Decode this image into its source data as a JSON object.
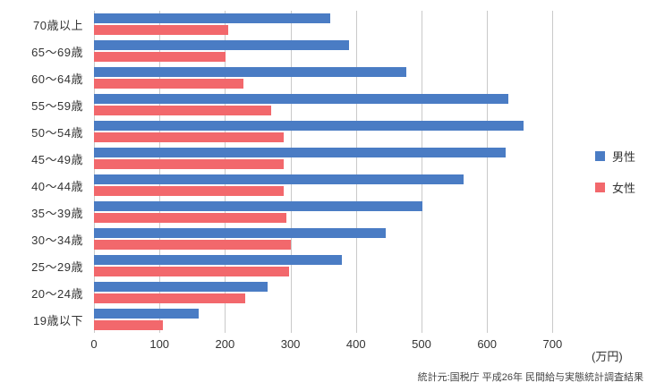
{
  "chart_data": {
    "type": "bar",
    "orientation": "horizontal",
    "title": "",
    "categories": [
      "70歳以上",
      "65〜69歳",
      "60〜64歳",
      "55〜59歳",
      "50〜54歳",
      "45〜49歳",
      "40〜44歳",
      "35〜39歳",
      "30〜34歳",
      "25〜29歳",
      "20〜24歳",
      "19歳以下"
    ],
    "series": [
      {
        "name": "男性",
        "color": "#4a7cc4",
        "values": [
          360,
          390,
          477,
          632,
          656,
          629,
          564,
          502,
          446,
          378,
          265,
          160
        ]
      },
      {
        "name": "女性",
        "color": "#f2686c",
        "values": [
          205,
          201,
          228,
          270,
          290,
          290,
          290,
          294,
          301,
          298,
          231,
          105
        ]
      }
    ],
    "x_ticks": [
      0,
      100,
      200,
      300,
      400,
      500,
      600,
      700
    ],
    "xlim": [
      0,
      735
    ],
    "grid": true,
    "legend_position": "right",
    "xlabel_unit": "(万円)",
    "source": "統計元:国税庁 平成26年 民間給与実態統計調査結果"
  }
}
